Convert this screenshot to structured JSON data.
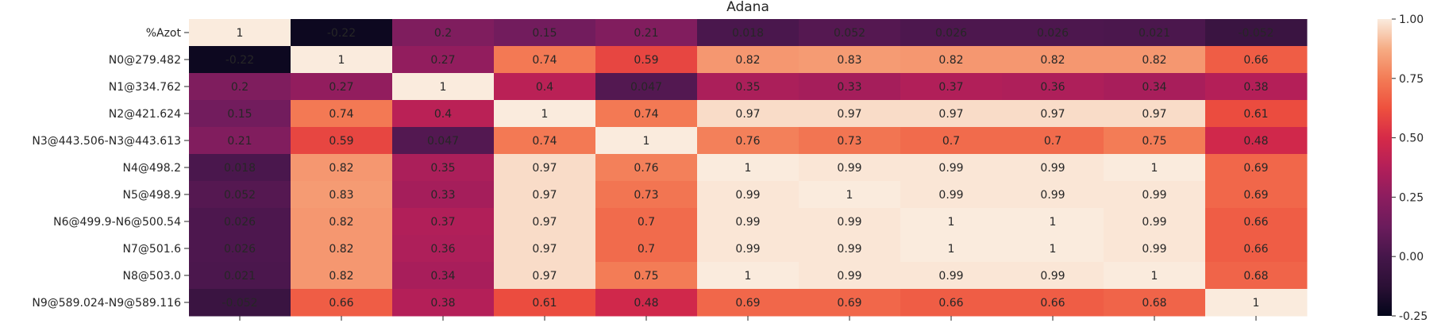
{
  "chart_data": {
    "type": "heatmap",
    "title": "Adana",
    "row_labels": [
      "%Azot",
      "N0@279.482",
      "N1@334.762",
      "N2@421.624",
      "N3@443.506-N3@443.613",
      "N4@498.2",
      "N5@498.9",
      "N6@499.9-N6@500.54",
      "N7@501.6",
      "N8@503.0",
      "N9@589.024-N9@589.116"
    ],
    "column_labels": [],
    "values": [
      [
        1,
        -0.22,
        0.2,
        0.15,
        0.21,
        0.018,
        0.052,
        0.026,
        0.026,
        0.021,
        -0.052
      ],
      [
        -0.22,
        1,
        0.27,
        0.74,
        0.59,
        0.82,
        0.83,
        0.82,
        0.82,
        0.82,
        0.66
      ],
      [
        0.2,
        0.27,
        1,
        0.4,
        0.047,
        0.35,
        0.33,
        0.37,
        0.36,
        0.34,
        0.38
      ],
      [
        0.15,
        0.74,
        0.4,
        1,
        0.74,
        0.97,
        0.97,
        0.97,
        0.97,
        0.97,
        0.61
      ],
      [
        0.21,
        0.59,
        0.047,
        0.74,
        1,
        0.76,
        0.73,
        0.7,
        0.7,
        0.75,
        0.48
      ],
      [
        0.018,
        0.82,
        0.35,
        0.97,
        0.76,
        1,
        0.99,
        0.99,
        0.99,
        1,
        0.69
      ],
      [
        0.052,
        0.83,
        0.33,
        0.97,
        0.73,
        0.99,
        1,
        0.99,
        0.99,
        0.99,
        0.69
      ],
      [
        0.026,
        0.82,
        0.37,
        0.97,
        0.7,
        0.99,
        0.99,
        1,
        1,
        0.99,
        0.66
      ],
      [
        0.026,
        0.82,
        0.36,
        0.97,
        0.7,
        0.99,
        0.99,
        1,
        1,
        0.99,
        0.66
      ],
      [
        0.021,
        0.82,
        0.34,
        0.97,
        0.75,
        1,
        0.99,
        0.99,
        0.99,
        1,
        0.68
      ],
      [
        -0.052,
        0.66,
        0.38,
        0.61,
        0.48,
        0.69,
        0.69,
        0.66,
        0.66,
        0.68,
        1
      ]
    ],
    "annotations": [
      [
        "1",
        "-0.22",
        "0.2",
        "0.15",
        "0.21",
        "0.018",
        "0.052",
        "0.026",
        "0.026",
        "0.021",
        "-0.052"
      ],
      [
        "-0.22",
        "1",
        "0.27",
        "0.74",
        "0.59",
        "0.82",
        "0.83",
        "0.82",
        "0.82",
        "0.82",
        "0.66"
      ],
      [
        "0.2",
        "0.27",
        "1",
        "0.4",
        "0.047",
        "0.35",
        "0.33",
        "0.37",
        "0.36",
        "0.34",
        "0.38"
      ],
      [
        "0.15",
        "0.74",
        "0.4",
        "1",
        "0.74",
        "0.97",
        "0.97",
        "0.97",
        "0.97",
        "0.97",
        "0.61"
      ],
      [
        "0.21",
        "0.59",
        "0.047",
        "0.74",
        "1",
        "0.76",
        "0.73",
        "0.7",
        "0.7",
        "0.75",
        "0.48"
      ],
      [
        "0.018",
        "0.82",
        "0.35",
        "0.97",
        "0.76",
        "1",
        "0.99",
        "0.99",
        "0.99",
        "1",
        "0.69"
      ],
      [
        "0.052",
        "0.83",
        "0.33",
        "0.97",
        "0.73",
        "0.99",
        "1",
        "0.99",
        "0.99",
        "0.99",
        "0.69"
      ],
      [
        "0.026",
        "0.82",
        "0.37",
        "0.97",
        "0.7",
        "0.99",
        "0.99",
        "1",
        "1",
        "0.99",
        "0.66"
      ],
      [
        "0.026",
        "0.82",
        "0.36",
        "0.97",
        "0.7",
        "0.99",
        "0.99",
        "1",
        "1",
        "0.99",
        "0.66"
      ],
      [
        "0.021",
        "0.82",
        "0.34",
        "0.97",
        "0.75",
        "1",
        "0.99",
        "0.99",
        "0.99",
        "1",
        "0.68"
      ],
      [
        "-0.052",
        "0.66",
        "0.38",
        "0.61",
        "0.48",
        "0.69",
        "0.69",
        "0.66",
        "0.66",
        "0.68",
        "1"
      ]
    ],
    "colormap": "rocket",
    "vmin": -0.25,
    "vmax": 1.0,
    "colorbar_ticks": [
      "1.00",
      "0.75",
      "0.50",
      "0.25",
      "0.00",
      "-0.25"
    ],
    "colorbar_tick_values": [
      1.0,
      0.75,
      0.5,
      0.25,
      0.0,
      -0.25
    ],
    "grid": false,
    "legend": "colorbar-right"
  }
}
